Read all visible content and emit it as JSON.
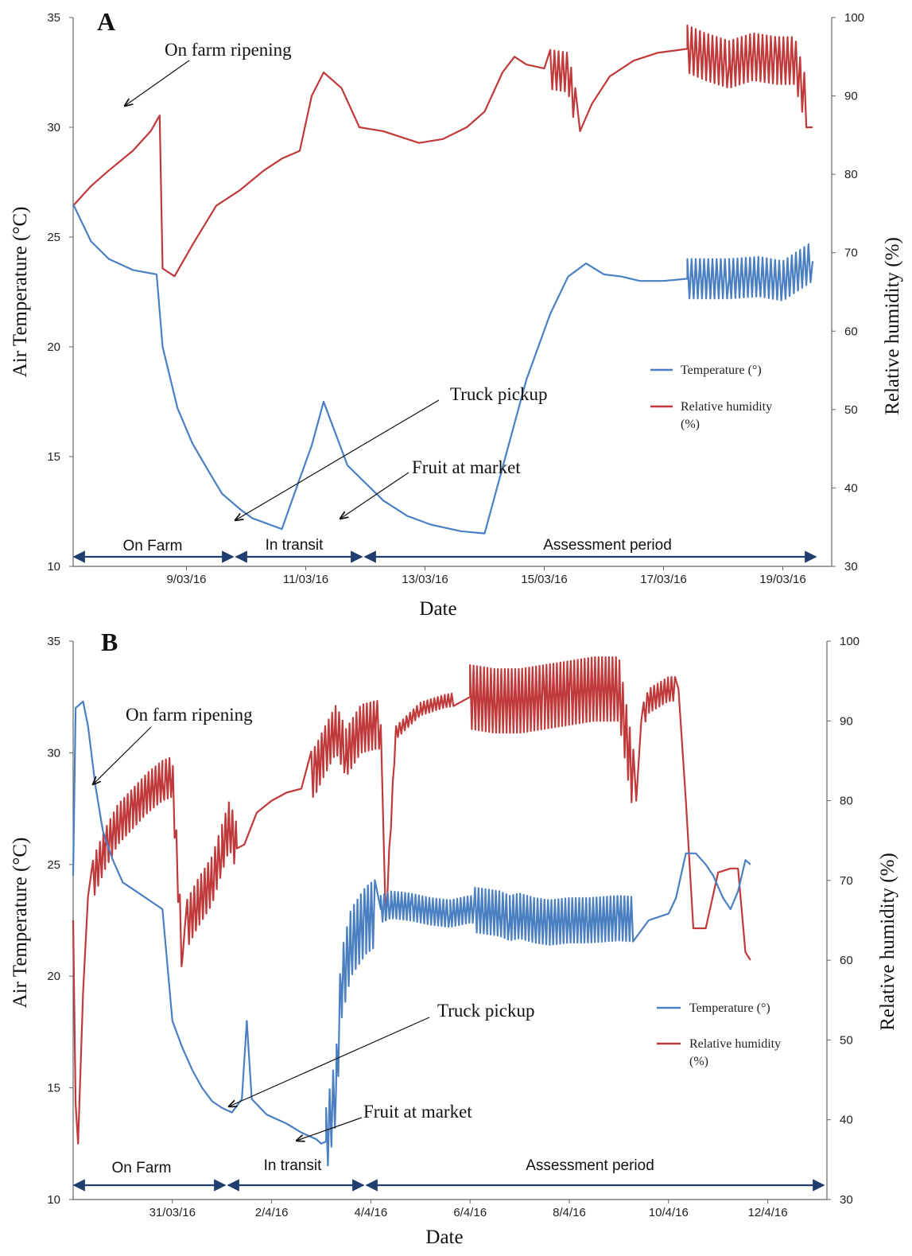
{
  "colors": {
    "temperature": "#4a7fc1",
    "humidity": "#c0393b",
    "arrow": "#1f3d6e",
    "axis": "#666666"
  },
  "chart_data": [
    {
      "type": "line",
      "panel_label": "A",
      "xlabel": "Date",
      "ylabel_left": "Air Temperature  (°C)",
      "ylabel_right": "Relative  humidity  (%)",
      "y_left_range": [
        10,
        35
      ],
      "y_left_ticks": [
        "10",
        "15",
        "20",
        "25",
        "30",
        "35"
      ],
      "y_right_range": [
        30,
        100
      ],
      "y_right_ticks": [
        "30",
        "40",
        "50",
        "60",
        "70",
        "80",
        "90",
        "100"
      ],
      "x_ticks": [
        "9/03/16",
        "11/03/16",
        "13/03/16",
        "15/03/16",
        "17/03/16",
        "19/03/16"
      ],
      "legend": {
        "temperature": "Temperature (°)",
        "humidity_line1": "Relative humidity",
        "humidity_line2": "(%)"
      },
      "annotations": {
        "ripening": "On farm ripening",
        "truck": "Truck  pickup",
        "market": "Fruit at market"
      },
      "periods": {
        "farm": "On Farm",
        "transit": "In transit",
        "assessment": "Assessment period"
      },
      "series": [
        {
          "name": "Temperature (°)",
          "axis": "left",
          "x": [
            0,
            0.3,
            0.6,
            1.0,
            1.2,
            1.4,
            1.5,
            1.75,
            2.0,
            2.3,
            2.5,
            2.8,
            3.0,
            3.3,
            3.5,
            3.8,
            4.0,
            4.2,
            4.6,
            4.9,
            5.2,
            5.6,
            6.0,
            6.5,
            6.9,
            7.2,
            7.6,
            8.0,
            8.3,
            8.6,
            8.9,
            9.2,
            9.5,
            9.9,
            10.3,
            10.6,
            11.0,
            11.5,
            11.9,
            12.4
          ],
          "y": [
            26.5,
            24.8,
            24.0,
            23.5,
            23.4,
            23.3,
            20.0,
            17.2,
            15.6,
            14.2,
            13.3,
            12.6,
            12.2,
            11.9,
            11.7,
            14.0,
            15.5,
            17.5,
            14.6,
            13.8,
            13.0,
            12.3,
            11.9,
            11.6,
            11.5,
            14.5,
            18.5,
            21.5,
            23.2,
            23.8,
            23.3,
            23.2,
            23.0,
            23.0,
            23.1,
            23.1,
            23.1,
            23.2,
            23.0,
            23.9
          ],
          "fluctuation": [
            {
              "from": 10.3,
              "to": 12.4,
              "amplitude": 0.9
            }
          ]
        },
        {
          "name": "Relative humidity (%)",
          "axis": "right",
          "x": [
            0,
            0.3,
            0.6,
            1.0,
            1.3,
            1.45,
            1.5,
            1.7,
            2.0,
            2.4,
            2.8,
            3.2,
            3.5,
            3.8,
            4.0,
            4.2,
            4.5,
            4.8,
            5.2,
            5.8,
            6.2,
            6.6,
            6.9,
            7.2,
            7.4,
            7.6,
            7.9,
            8.3,
            8.5,
            8.7,
            9.0,
            9.4,
            9.8,
            10.3,
            10.6,
            11.0,
            11.4,
            11.8,
            12.1,
            12.4
          ],
          "y": [
            76,
            78.5,
            80.5,
            83,
            85.5,
            87.5,
            68,
            67,
            71,
            76,
            78,
            80.5,
            82,
            83,
            90,
            93,
            91,
            86,
            85.5,
            84,
            84.5,
            86,
            88,
            93,
            95,
            94,
            93.5,
            93,
            85.5,
            89,
            92.5,
            94.5,
            95.5,
            96,
            95,
            94,
            95,
            94.5,
            94.5,
            86
          ],
          "fluctuation": [
            {
              "from": 8.0,
              "to": 8.45,
              "amplitude": 2.5
            },
            {
              "from": 10.3,
              "to": 12.3,
              "amplitude": 3.0
            }
          ]
        }
      ]
    },
    {
      "type": "line",
      "panel_label": "B",
      "xlabel": "Date",
      "ylabel_left": "Air Temperature  (°C)",
      "ylabel_right": "Relative  humidity  (%)",
      "y_left_range": [
        10,
        35
      ],
      "y_left_ticks": [
        "10",
        "15",
        "20",
        "25",
        "30",
        "35"
      ],
      "y_right_range": [
        30,
        100
      ],
      "y_right_ticks": [
        "30",
        "40",
        "50",
        "60",
        "70",
        "80",
        "90",
        "100"
      ],
      "x_ticks": [
        "31/03/16",
        "2/4/16",
        "4/4/16",
        "6/4/16",
        "8/4/16",
        "10/4/16",
        "12/4/16"
      ],
      "legend": {
        "temperature": "Temperature (°)",
        "humidity_line1": "Relative humidity",
        "humidity_line2": "(%)"
      },
      "annotations": {
        "ripening": "On farm ripening",
        "truck": "Truck  pickup",
        "market": "Fruit at market"
      },
      "periods": {
        "farm": "On Farm",
        "transit": "In transit",
        "assessment": "Assessment period"
      },
      "series": [
        {
          "name": "Temperature (°)",
          "axis": "left",
          "x": [
            0,
            0.05,
            0.2,
            0.3,
            0.45,
            0.6,
            0.8,
            1.0,
            1.2,
            1.4,
            1.6,
            1.8,
            2.0,
            2.2,
            2.4,
            2.6,
            2.8,
            3.0,
            3.2,
            3.4,
            3.5,
            3.6,
            3.9,
            4.3,
            4.6,
            4.9,
            5.0,
            5.1,
            5.3,
            5.4,
            5.6,
            5.9,
            6.2,
            6.4,
            6.8,
            7.2,
            7.6,
            8.0,
            8.3,
            8.6,
            8.8,
            9.0,
            9.3,
            9.6,
            10.0,
            10.4,
            11.0,
            11.6,
            12.0,
            12.15,
            12.35,
            12.55,
            12.75,
            12.9,
            13.1,
            13.25,
            13.4,
            13.55,
            13.65
          ],
          "y": [
            24.5,
            32.0,
            32.3,
            31.2,
            28.5,
            26.5,
            25.2,
            24.2,
            23.9,
            23.6,
            23.3,
            23.0,
            18.0,
            16.8,
            15.8,
            15.0,
            14.4,
            14.1,
            13.9,
            14.5,
            18.0,
            14.5,
            13.8,
            13.4,
            13.0,
            12.7,
            12.5,
            12.6,
            15.0,
            19.5,
            21.5,
            22.5,
            23.0,
            23.2,
            23.1,
            22.9,
            22.8,
            23.0,
            22.9,
            22.8,
            22.6,
            22.7,
            22.5,
            22.4,
            22.5,
            22.5,
            22.6,
            22.5,
            22.8,
            23.5,
            25.5,
            25.5,
            25.0,
            24.5,
            23.5,
            23.0,
            23.8,
            25.2,
            25.0
          ],
          "fluctuation": [
            {
              "from": 5.1,
              "to": 6.1,
              "amplitude": 1.5
            },
            {
              "from": 6.2,
              "to": 8.1,
              "amplitude": 0.6
            },
            {
              "from": 8.1,
              "to": 11.3,
              "amplitude": 1.0
            }
          ]
        },
        {
          "name": "Relative humidity (%)",
          "axis": "right",
          "x": [
            0,
            0.05,
            0.1,
            0.2,
            0.3,
            0.45,
            0.65,
            0.9,
            1.2,
            1.5,
            1.8,
            2.0,
            2.2,
            2.25,
            2.5,
            2.8,
            3.0,
            3.15,
            3.3,
            3.45,
            3.7,
            4.0,
            4.3,
            4.6,
            4.9,
            5.05,
            5.3,
            5.5,
            5.8,
            6.1,
            6.2,
            6.3,
            6.5,
            7.0,
            7.5,
            8.0,
            8.5,
            9.0,
            9.5,
            10.0,
            10.5,
            11.0,
            11.2,
            11.35,
            11.45,
            11.6,
            12.0,
            12.2,
            12.35,
            12.5,
            12.75,
            13.0,
            13.25,
            13.4,
            13.55,
            13.65
          ],
          "y": [
            65,
            42,
            37,
            56,
            68,
            71,
            74,
            77,
            79,
            81,
            82.5,
            83,
            60,
            64,
            67,
            70,
            74,
            77,
            74,
            74.5,
            78.5,
            80,
            81,
            81.5,
            84,
            86,
            89,
            86,
            89,
            89.5,
            89.5,
            65,
            88.5,
            91.5,
            92.5,
            93,
            92.5,
            92.5,
            93,
            93.5,
            94,
            94,
            86,
            80,
            90,
            92.5,
            94,
            94,
            80,
            64,
            64,
            71,
            71.5,
            71.5,
            61,
            60
          ],
          "fluctuation": [
            {
              "from": 0.4,
              "to": 2.2,
              "amplitude": 2.5
            },
            {
              "from": 2.3,
              "to": 3.3,
              "amplitude": 3.0
            },
            {
              "from": 4.8,
              "to": 6.2,
              "amplitude": 3.0
            },
            {
              "from": 6.3,
              "to": 7.7,
              "amplitude": 0.8
            },
            {
              "from": 8.0,
              "to": 11.3,
              "amplitude": 4.0
            },
            {
              "from": 11.5,
              "to": 12.15,
              "amplitude": 1.5
            }
          ]
        }
      ]
    }
  ]
}
